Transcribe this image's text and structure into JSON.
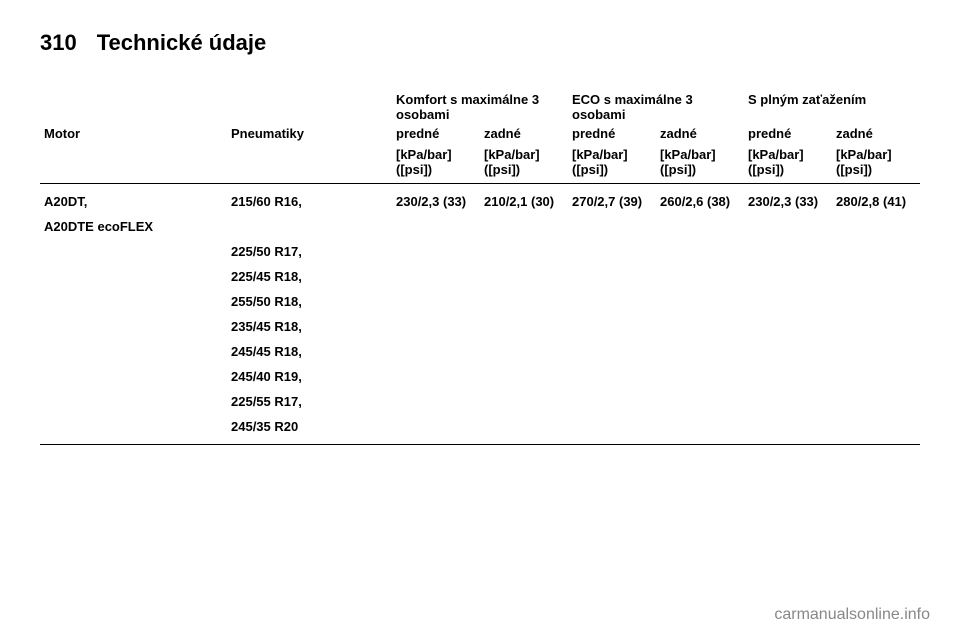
{
  "page_number": "310",
  "page_title": "Technické údaje",
  "header_groups": {
    "comfort": "Komfort s maximálne 3 osobami",
    "eco": "ECO s maximálne 3 osobami",
    "full": "S plným zaťažením"
  },
  "col_labels": {
    "motor": "Motor",
    "tires": "Pneumatiky",
    "front": "predné",
    "rear": "zadné"
  },
  "unit_label": "[kPa/bar] ([psi])",
  "motor_line1": "A20DT,",
  "motor_line2": "A20DTE ecoFLEX",
  "tire_sizes": [
    "215/60 R16,",
    "225/50 R17,",
    "225/45 R18,",
    "255/50 R18,",
    "235/45 R18,",
    "245/45 R18,",
    "245/40 R19,",
    "225/55 R17,",
    "245/35 R20"
  ],
  "values": {
    "comfort_front": "230/2,3 (33)",
    "comfort_rear": "210/2,1 (30)",
    "eco_front": "270/2,7 (39)",
    "eco_rear": "260/2,6 (38)",
    "full_front": "230/2,3 (33)",
    "full_rear": "280/2,8 (41)"
  },
  "watermark": "carmanualsonline.info"
}
